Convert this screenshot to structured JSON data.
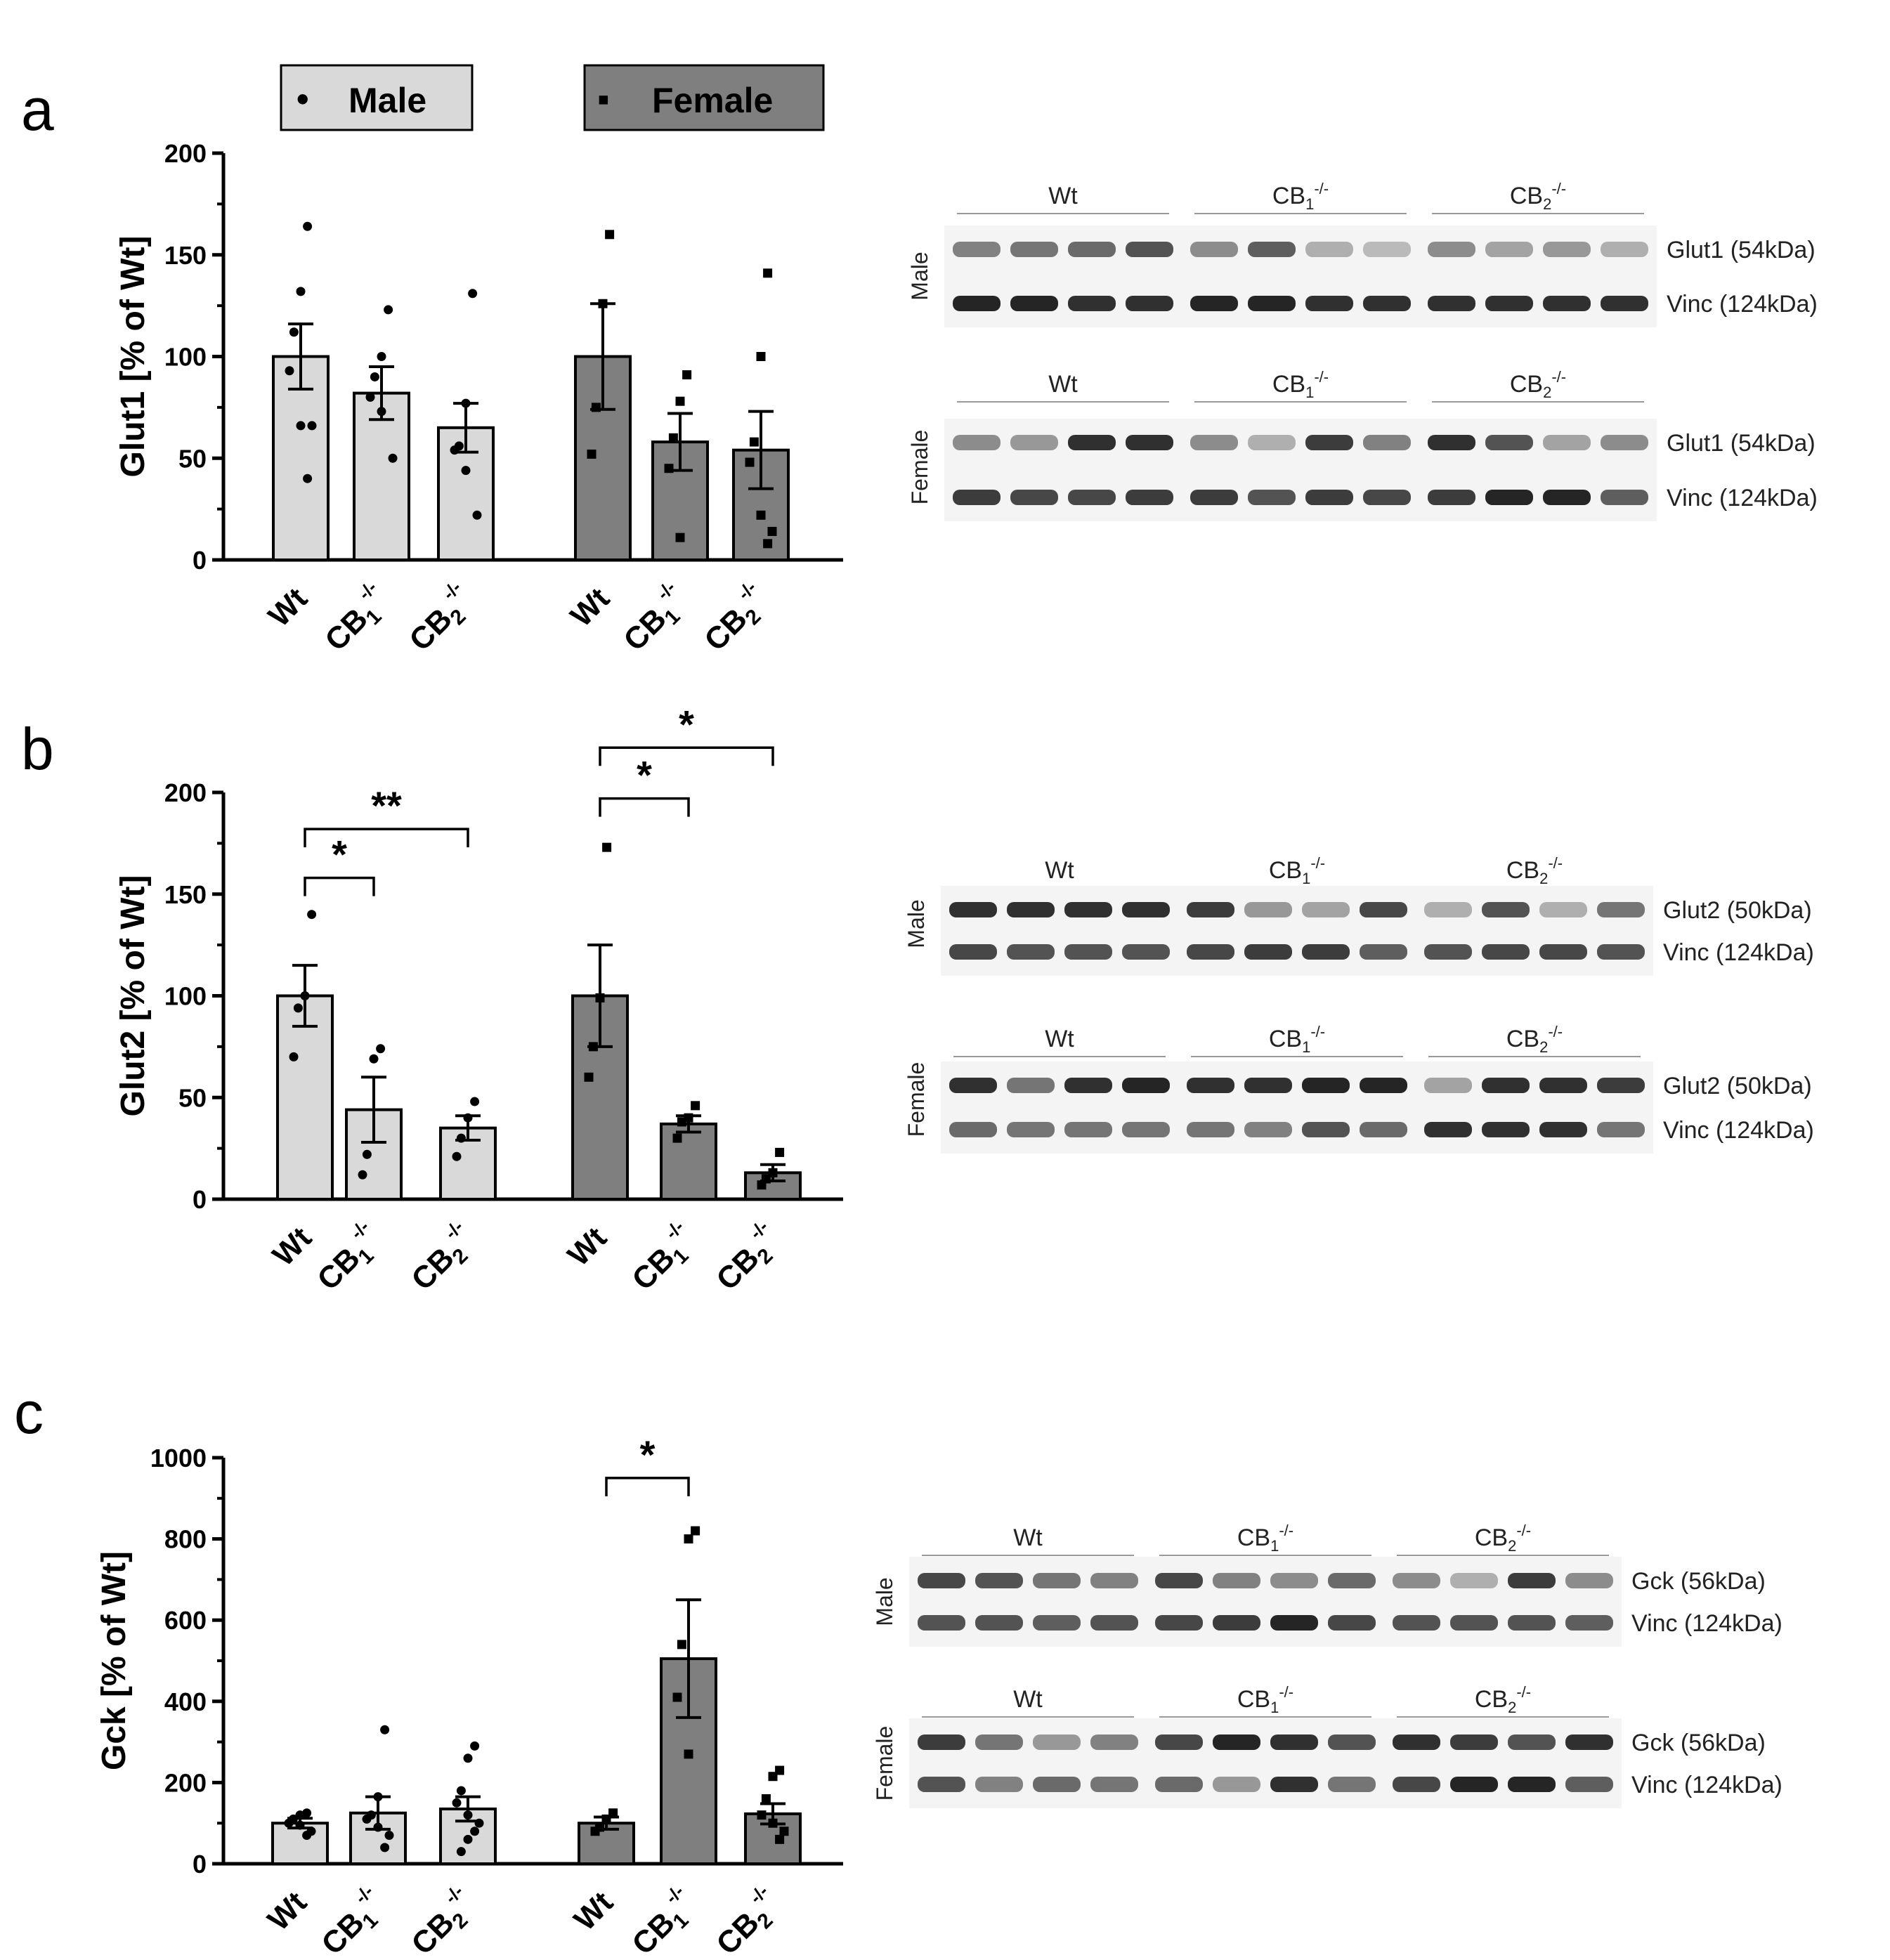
{
  "legend": {
    "male_label": "Male",
    "female_label": "Female",
    "male_marker": "•",
    "female_marker": "▪",
    "male_color": "#d9d9d9",
    "female_color": "#7f7f7f"
  },
  "chart_data": [
    {
      "panel": "a",
      "type": "bar",
      "ylabel": "Glut1 [% of Wt]",
      "ylim": [
        0,
        200
      ],
      "yticks": [
        0,
        50,
        100,
        150,
        200
      ],
      "groups": [
        {
          "name": "Male",
          "bars": [
            {
              "label": "Wt",
              "sub": "",
              "sup": "",
              "mean": 100,
              "sem": 16,
              "points": [
                164,
                132,
                112,
                93,
                66,
                66,
                40
              ]
            },
            {
              "label": "CB",
              "sub": "1",
              "sup": "-/-",
              "mean": 82,
              "sem": 13,
              "points": [
                123,
                100,
                90,
                80,
                73,
                50
              ]
            },
            {
              "label": "CB",
              "sub": "2",
              "sup": "-/-",
              "mean": 65,
              "sem": 12,
              "points": [
                131,
                77,
                56,
                54,
                44,
                22
              ]
            }
          ]
        },
        {
          "name": "Female",
          "bars": [
            {
              "label": "Wt",
              "sub": "",
              "sup": "",
              "mean": 100,
              "sem": 26,
              "points": [
                160,
                126,
                75,
                52
              ]
            },
            {
              "label": "CB",
              "sub": "1",
              "sup": "-/-",
              "mean": 58,
              "sem": 14,
              "points": [
                91,
                78,
                60,
                45,
                11
              ]
            },
            {
              "label": "CB",
              "sub": "2",
              "sup": "-/-",
              "mean": 54,
              "sem": 19,
              "points": [
                141,
                100,
                58,
                48,
                22,
                14,
                8
              ]
            }
          ]
        }
      ],
      "significance": []
    },
    {
      "panel": "b",
      "type": "bar",
      "ylabel": "Glut2 [% of Wt]",
      "ylim": [
        0,
        200
      ],
      "yticks": [
        0,
        50,
        100,
        150,
        200
      ],
      "groups": [
        {
          "name": "Male",
          "bars": [
            {
              "label": "Wt",
              "sub": "",
              "sup": "",
              "mean": 100,
              "sem": 15,
              "points": [
                140,
                100,
                94,
                70
              ]
            },
            {
              "label": "CB",
              "sub": "1",
              "sup": "-/-",
              "mean": 44,
              "sem": 16,
              "points": [
                74,
                69,
                22,
                12
              ]
            },
            {
              "label": "CB",
              "sub": "2",
              "sup": "-/-",
              "mean": 35,
              "sem": 6,
              "points": [
                48,
                40,
                30,
                21
              ]
            }
          ]
        },
        {
          "name": "Female",
          "bars": [
            {
              "label": "Wt",
              "sub": "",
              "sup": "",
              "mean": 100,
              "sem": 25,
              "points": [
                173,
                99,
                75,
                60
              ]
            },
            {
              "label": "CB",
              "sub": "1",
              "sup": "-/-",
              "mean": 37,
              "sem": 4,
              "points": [
                46,
                40,
                38,
                30
              ]
            },
            {
              "label": "CB",
              "sub": "2",
              "sup": "-/-",
              "mean": 13,
              "sem": 4,
              "points": [
                23,
                13,
                10,
                7
              ]
            }
          ]
        }
      ],
      "significance": [
        {
          "group": 0,
          "from": 0,
          "to": 1,
          "y": 158,
          "label": "*"
        },
        {
          "group": 0,
          "from": 0,
          "to": 2,
          "y": 182,
          "label": "**"
        },
        {
          "group": 1,
          "from": 0,
          "to": 1,
          "y": 197,
          "label": "*"
        },
        {
          "group": 1,
          "from": 0,
          "to": 2,
          "y": 222,
          "label": "*"
        }
      ]
    },
    {
      "panel": "c",
      "type": "bar",
      "ylabel": "Gck [% of Wt]",
      "ylim": [
        0,
        1000
      ],
      "yticks": [
        0,
        200,
        400,
        600,
        800,
        1000
      ],
      "groups": [
        {
          "name": "Male",
          "bars": [
            {
              "label": "Wt",
              "sub": "",
              "sup": "",
              "mean": 100,
              "sem": 12,
              "points": [
                125,
                120,
                110,
                100,
                95,
                80,
                70
              ]
            },
            {
              "label": "CB",
              "sub": "1",
              "sup": "-/-",
              "mean": 125,
              "sem": 40,
              "points": [
                330,
                165,
                120,
                110,
                90,
                70,
                40
              ]
            },
            {
              "label": "CB",
              "sub": "2",
              "sup": "-/-",
              "mean": 135,
              "sem": 30,
              "points": [
                290,
                260,
                180,
                150,
                120,
                100,
                80,
                60,
                30
              ]
            }
          ]
        },
        {
          "name": "Female",
          "bars": [
            {
              "label": "Wt",
              "sub": "",
              "sup": "",
              "mean": 100,
              "sem": 15,
              "points": [
                125,
                110,
                90,
                80
              ]
            },
            {
              "label": "CB",
              "sub": "1",
              "sup": "-/-",
              "mean": 505,
              "sem": 145,
              "points": [
                820,
                800,
                540,
                410,
                270
              ]
            },
            {
              "label": "CB",
              "sub": "2",
              "sup": "-/-",
              "mean": 123,
              "sem": 25,
              "points": [
                230,
                215,
                160,
                120,
                100,
                80,
                60
              ]
            }
          ]
        }
      ],
      "significance": [
        {
          "group": 1,
          "from": 0,
          "to": 1,
          "y": 950,
          "label": "*"
        }
      ]
    }
  ],
  "blots": [
    {
      "panel": "a",
      "blocks": [
        {
          "side": "Male",
          "headers": [
            "Wt",
            "CB1-/-",
            "CB2-/-"
          ],
          "rows": [
            {
              "label": "Glut1 (54kDa)",
              "intensities": [
                0.55,
                0.6,
                0.65,
                0.75,
                0.5,
                0.7,
                0.35,
                0.3,
                0.5,
                0.4,
                0.45,
                0.35
              ]
            },
            {
              "label": "Vinc (124kDa)",
              "intensities": [
                0.95,
                0.95,
                0.9,
                0.9,
                0.95,
                0.95,
                0.9,
                0.9,
                0.9,
                0.9,
                0.9,
                0.9
              ]
            }
          ]
        },
        {
          "side": "Female",
          "headers": [
            "Wt",
            "CB1-/-",
            "CB2-/-"
          ],
          "rows": [
            {
              "label": "Glut1 (54kDa)",
              "intensities": [
                0.5,
                0.45,
                0.9,
                0.9,
                0.5,
                0.35,
                0.85,
                0.55,
                0.9,
                0.75,
                0.4,
                0.5
              ]
            },
            {
              "label": "Vinc (124kDa)",
              "intensities": [
                0.85,
                0.8,
                0.8,
                0.85,
                0.85,
                0.75,
                0.85,
                0.8,
                0.85,
                0.95,
                0.95,
                0.7
              ]
            }
          ]
        }
      ]
    },
    {
      "panel": "b",
      "blocks": [
        {
          "side": "Male",
          "headers": [
            "Wt",
            "CB1-/-",
            "CB2-/-"
          ],
          "rows": [
            {
              "label": "Glut2 (50kDa)",
              "intensities": [
                0.9,
                0.9,
                0.9,
                0.9,
                0.85,
                0.45,
                0.4,
                0.8,
                0.35,
                0.75,
                0.35,
                0.6
              ]
            },
            {
              "label": "Vinc (124kDa)",
              "intensities": [
                0.8,
                0.75,
                0.75,
                0.75,
                0.8,
                0.85,
                0.85,
                0.7,
                0.75,
                0.8,
                0.8,
                0.75
              ]
            }
          ]
        },
        {
          "side": "Female",
          "headers": [
            "Wt",
            "CB1-/-",
            "CB2-/-"
          ],
          "rows": [
            {
              "label": "Glut2 (50kDa)",
              "intensities": [
                0.9,
                0.6,
                0.9,
                0.95,
                0.9,
                0.9,
                0.95,
                0.95,
                0.4,
                0.9,
                0.9,
                0.85
              ]
            },
            {
              "label": "Vinc (124kDa)",
              "intensities": [
                0.65,
                0.6,
                0.6,
                0.6,
                0.6,
                0.55,
                0.75,
                0.65,
                0.9,
                0.9,
                0.9,
                0.6
              ]
            }
          ]
        }
      ]
    },
    {
      "panel": "c",
      "blocks": [
        {
          "side": "Male",
          "headers": [
            "Wt",
            "CB1-/-",
            "CB2-/-"
          ],
          "rows": [
            {
              "label": "Gck (56kDa)",
              "intensities": [
                0.8,
                0.75,
                0.6,
                0.55,
                0.8,
                0.55,
                0.5,
                0.65,
                0.5,
                0.35,
                0.85,
                0.5
              ]
            },
            {
              "label": "Vinc (124kDa)",
              "intensities": [
                0.75,
                0.75,
                0.7,
                0.75,
                0.8,
                0.85,
                0.95,
                0.8,
                0.75,
                0.75,
                0.75,
                0.7
              ]
            }
          ]
        },
        {
          "side": "Female",
          "headers": [
            "Wt",
            "CB1-/-",
            "CB2-/-"
          ],
          "rows": [
            {
              "label": "Gck (56kDa)",
              "intensities": [
                0.85,
                0.6,
                0.45,
                0.55,
                0.8,
                0.95,
                0.9,
                0.75,
                0.9,
                0.85,
                0.75,
                0.9
              ]
            },
            {
              "label": "Vinc (124kDa)",
              "intensities": [
                0.75,
                0.55,
                0.65,
                0.6,
                0.65,
                0.45,
                0.9,
                0.6,
                0.8,
                0.95,
                0.95,
                0.7
              ]
            }
          ]
        }
      ]
    }
  ]
}
